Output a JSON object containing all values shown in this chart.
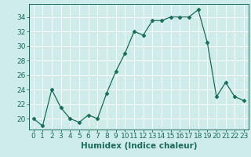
{
  "x": [
    0,
    1,
    2,
    3,
    4,
    5,
    6,
    7,
    8,
    9,
    10,
    11,
    12,
    13,
    14,
    15,
    16,
    17,
    18,
    19,
    20,
    21,
    22,
    23
  ],
  "y": [
    20,
    19,
    24,
    21.5,
    20,
    19.5,
    20.5,
    20,
    23.5,
    26.5,
    29,
    32,
    31.5,
    33.5,
    33.5,
    34,
    34,
    34,
    35,
    30.5,
    23,
    25,
    23,
    22.5
  ],
  "line_color": "#1a6b5a",
  "marker": "D",
  "marker_size": 2.5,
  "marker_color": "#1a6b5a",
  "xlabel": "Humidex (Indice chaleur)",
  "xlim": [
    -0.5,
    23.5
  ],
  "ylim": [
    18.5,
    35.8
  ],
  "yticks": [
    20,
    22,
    24,
    26,
    28,
    30,
    32,
    34
  ],
  "xticks": [
    0,
    1,
    2,
    3,
    4,
    5,
    6,
    7,
    8,
    9,
    10,
    11,
    12,
    13,
    14,
    15,
    16,
    17,
    18,
    19,
    20,
    21,
    22,
    23
  ],
  "bg_color": "#ceecea",
  "grid_color": "#ffffff",
  "tick_color": "#1a6b5a",
  "xlabel_fontsize": 7.5,
  "tick_fontsize": 6.5
}
